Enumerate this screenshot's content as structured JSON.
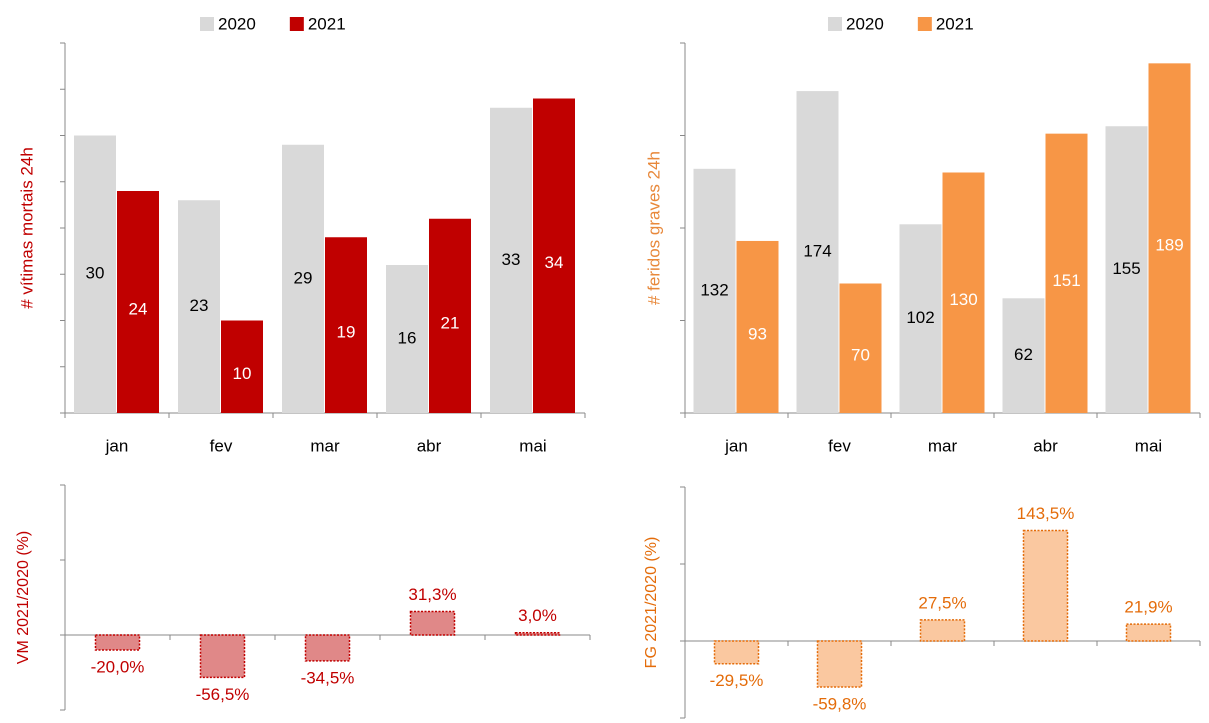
{
  "chart_data": [
    {
      "type": "bar",
      "y_label": "# vítimas mortais 24h",
      "y_label_color": "#c00000",
      "categories": [
        "jan",
        "fev",
        "mar",
        "abr",
        "mai"
      ],
      "series": [
        {
          "name": "2020",
          "color": "#d9d9d9",
          "label_color": "#000000",
          "values": [
            30,
            23,
            29,
            16,
            33
          ]
        },
        {
          "name": "2021",
          "color": "#c00000",
          "label_color": "#ffffff",
          "values": [
            24,
            10,
            19,
            21,
            34
          ]
        }
      ],
      "ylim": [
        0,
        40
      ],
      "yticks": [
        0,
        5,
        10,
        15,
        20,
        25,
        30,
        35,
        40
      ],
      "legend": "top"
    },
    {
      "type": "bar",
      "y_label": "# feridos graves 24h",
      "y_label_color": "#e8883a",
      "categories": [
        "jan",
        "fev",
        "mar",
        "abr",
        "mai"
      ],
      "series": [
        {
          "name": "2020",
          "color": "#d9d9d9",
          "label_color": "#000000",
          "values": [
            132,
            174,
            102,
            62,
            155
          ]
        },
        {
          "name": "2021",
          "color": "#f79646",
          "label_color": "#ffffff",
          "values": [
            93,
            70,
            130,
            151,
            189
          ]
        }
      ],
      "ylim": [
        0,
        200
      ],
      "yticks": [
        0,
        50,
        100,
        150,
        200
      ],
      "legend": "top"
    },
    {
      "type": "change",
      "y_label": "VM 2021/2020 (%)",
      "color": "#e08888",
      "edge_color": "#c00000",
      "values": [
        -20.0,
        -56.5,
        -34.5,
        31.3,
        3.0
      ],
      "value_labels": [
        "-20,0%",
        "-56,5%",
        "-34,5%",
        "31,3%",
        "3,0%"
      ],
      "ylim": [
        -100,
        200
      ],
      "yticks": [
        -100,
        0,
        100,
        200
      ]
    },
    {
      "type": "change",
      "y_label": "FG 2021/2020 (%)",
      "color": "#fac8a0",
      "edge_color": "#e46c0a",
      "values": [
        -29.5,
        -59.8,
        27.5,
        143.5,
        21.9
      ],
      "value_labels": [
        "-29,5%",
        "-59,8%",
        "27,5%",
        "143,5%",
        "21,9%"
      ],
      "ylim": [
        -100,
        200
      ],
      "yticks": [
        -100,
        0,
        100,
        200
      ]
    }
  ]
}
